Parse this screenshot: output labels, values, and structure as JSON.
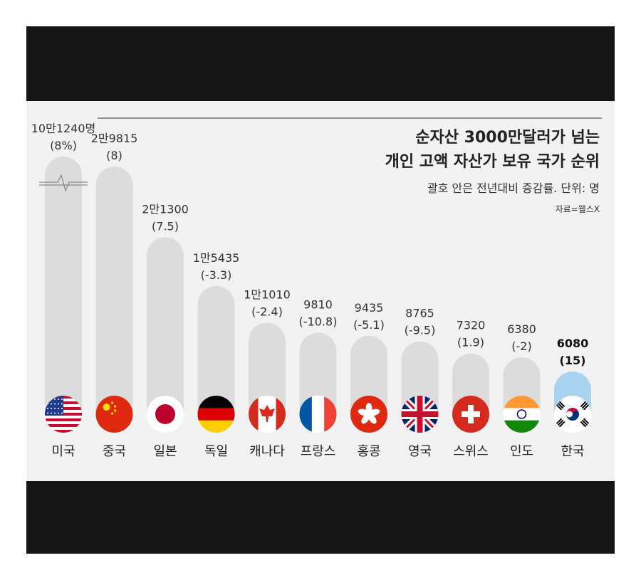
{
  "chart_data": {
    "type": "bar",
    "title_line1": "순자산 3000만달러가 넘는",
    "title_line2": "개인 고액 자산가 보유 국가 순위",
    "subtitle": "괄호 안은 전년대비 증감률. 단위: 명",
    "source": "자료=웰스X",
    "categories": [
      "미국",
      "중국",
      "일본",
      "독일",
      "캐나다",
      "프랑스",
      "홍콩",
      "영국",
      "스위스",
      "인도",
      "한국"
    ],
    "values": [
      101240,
      29815,
      21300,
      15435,
      11010,
      9810,
      9435,
      8765,
      7320,
      6380,
      6080
    ],
    "value_labels": [
      "10만1240명",
      "2만9815",
      "2만1300",
      "1만5435",
      "1만1010",
      "9810",
      "9435",
      "8765",
      "7320",
      "6380",
      "6080"
    ],
    "change_labels": [
      "(8%)",
      "(8)",
      "(7.5)",
      "(-3.3)",
      "(-2.4)",
      "(-10.8)",
      "(-5.1)",
      "(-9.5)",
      "(1.9)",
      "(-2)",
      "(15)"
    ],
    "highlight": "한국",
    "axis_break": true,
    "colors": {
      "bar": "#dcdcdc",
      "highlight_bar": "#a9d3ef",
      "panel": "#f2f2f2",
      "band": "#151515"
    }
  }
}
